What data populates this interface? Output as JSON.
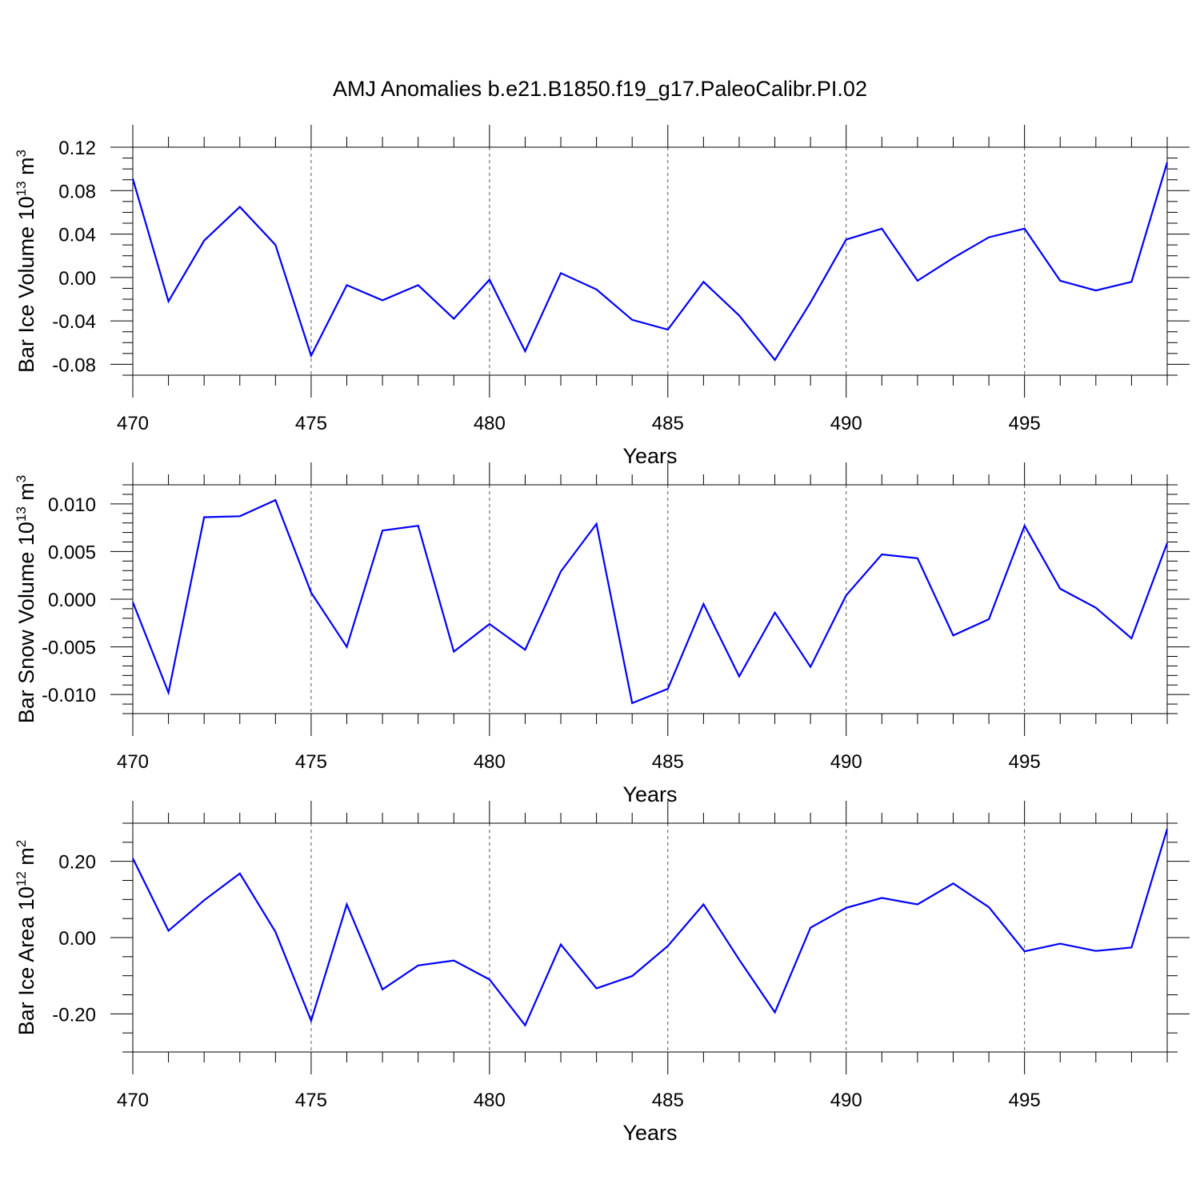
{
  "title": "AMJ Anomalies b.e21.B1850.f19_g17.PaleoCalibr.PI.02",
  "chart_data": [
    {
      "type": "line",
      "title": "",
      "xlabel": "Years",
      "ylabel": {
        "base": "Bar Ice Volume 10",
        "exp": "13",
        "unit": " m",
        "unit_exp": "3"
      },
      "xlim": [
        470,
        499
      ],
      "ylim": [
        -0.09,
        0.12
      ],
      "x_ticks": [
        470,
        475,
        480,
        485,
        490,
        495
      ],
      "x_tick_labels": [
        "470",
        "475",
        "480",
        "485",
        "490",
        "495"
      ],
      "y_ticks": [
        -0.08,
        -0.04,
        0.0,
        0.04,
        0.08,
        0.12
      ],
      "y_tick_labels": [
        "-0.08",
        "-0.04",
        "0.00",
        "0.04",
        "0.08",
        "0.12"
      ],
      "y_minor_step": 0.01,
      "grid_x": [
        475,
        480,
        485,
        490,
        495
      ],
      "color": "#0000ff",
      "x": [
        470,
        471,
        472,
        473,
        474,
        475,
        476,
        477,
        478,
        479,
        480,
        481,
        482,
        483,
        484,
        485,
        486,
        487,
        488,
        489,
        490,
        491,
        492,
        493,
        494,
        495,
        496,
        497,
        498,
        499
      ],
      "values": [
        0.091,
        -0.022,
        0.034,
        0.065,
        0.03,
        -0.072,
        -0.007,
        -0.021,
        -0.007,
        -0.038,
        -0.002,
        -0.068,
        0.004,
        -0.011,
        -0.039,
        -0.048,
        -0.004,
        -0.035,
        -0.076,
        -0.023,
        0.035,
        0.045,
        -0.003,
        0.018,
        0.037,
        0.045,
        -0.003,
        -0.012,
        -0.004,
        0.106
      ]
    },
    {
      "type": "line",
      "title": "",
      "xlabel": "Years",
      "ylabel": {
        "base": "Bar Snow Volume 10",
        "exp": "13",
        "unit": " m",
        "unit_exp": "3"
      },
      "xlim": [
        470,
        499
      ],
      "ylim": [
        -0.012,
        0.012
      ],
      "x_ticks": [
        470,
        475,
        480,
        485,
        490,
        495
      ],
      "x_tick_labels": [
        "470",
        "475",
        "480",
        "485",
        "490",
        "495"
      ],
      "y_ticks": [
        -0.01,
        -0.005,
        0.0,
        0.005,
        0.01
      ],
      "y_tick_labels": [
        "-0.010",
        "-0.005",
        "0.000",
        "0.005",
        "0.010"
      ],
      "y_minor_step": 0.001,
      "grid_x": [
        475,
        480,
        485,
        490,
        495
      ],
      "color": "#0000ff",
      "x": [
        470,
        471,
        472,
        473,
        474,
        475,
        476,
        477,
        478,
        479,
        480,
        481,
        482,
        483,
        484,
        485,
        486,
        487,
        488,
        489,
        490,
        491,
        492,
        493,
        494,
        495,
        496,
        497,
        498,
        499
      ],
      "values": [
        -0.0003,
        -0.0098,
        0.0086,
        0.0087,
        0.0104,
        0.0007,
        -0.005,
        0.0072,
        0.0077,
        -0.0055,
        -0.0026,
        -0.0053,
        0.0029,
        0.0079,
        -0.0109,
        -0.0094,
        -0.0005,
        -0.0081,
        -0.0014,
        -0.0071,
        0.0004,
        0.0047,
        0.0043,
        -0.0038,
        -0.0021,
        0.0077,
        0.0011,
        -0.0009,
        -0.0041,
        0.0059
      ]
    },
    {
      "type": "line",
      "title": "",
      "xlabel": "Years",
      "ylabel": {
        "base": "Bar Ice Area 10",
        "exp": "12",
        "unit": " m",
        "unit_exp": "2"
      },
      "xlim": [
        470,
        499
      ],
      "ylim": [
        -0.3,
        0.3
      ],
      "x_ticks": [
        470,
        475,
        480,
        485,
        490,
        495
      ],
      "x_tick_labels": [
        "470",
        "475",
        "480",
        "485",
        "490",
        "495"
      ],
      "y_ticks": [
        -0.2,
        0.0,
        0.2
      ],
      "y_tick_labels": [
        "-0.20",
        "0.00",
        "0.20"
      ],
      "y_minor_step": 0.05,
      "grid_x": [
        475,
        480,
        485,
        490,
        495
      ],
      "color": "#0000ff",
      "x": [
        470,
        471,
        472,
        473,
        474,
        475,
        476,
        477,
        478,
        479,
        480,
        481,
        482,
        483,
        484,
        485,
        486,
        487,
        488,
        489,
        490,
        491,
        492,
        493,
        494,
        495,
        496,
        497,
        498,
        499
      ],
      "values": [
        0.208,
        0.018,
        0.098,
        0.168,
        0.015,
        -0.218,
        0.087,
        -0.136,
        -0.073,
        -0.06,
        -0.11,
        -0.23,
        -0.018,
        -0.133,
        -0.101,
        -0.022,
        0.087,
        -0.058,
        -0.196,
        0.026,
        0.078,
        0.104,
        0.087,
        0.142,
        0.08,
        -0.036,
        -0.016,
        -0.035,
        -0.026,
        0.285
      ]
    }
  ]
}
